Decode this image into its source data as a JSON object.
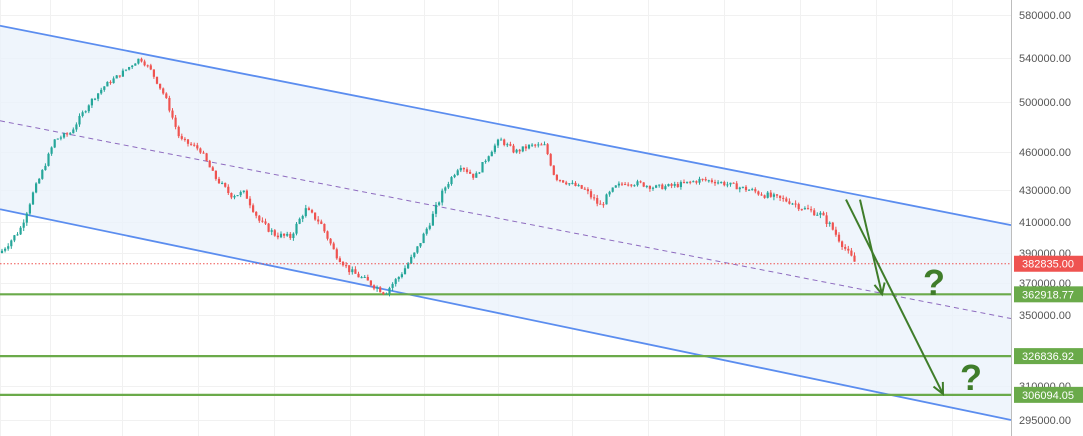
{
  "chart_data": {
    "type": "candlestick",
    "ylim": [
      290000,
      590000
    ],
    "y_ticks": [
      {
        "value": 580000,
        "label": "580000.00"
      },
      {
        "value": 540000,
        "label": "540000.00"
      },
      {
        "value": 500000,
        "label": "500000.00"
      },
      {
        "value": 460000,
        "label": "460000.00"
      },
      {
        "value": 430000,
        "label": "430000.00"
      },
      {
        "value": 410000,
        "label": "410000.00"
      },
      {
        "value": 390000,
        "label": "390000.00"
      },
      {
        "value": 370000,
        "label": "370000.00"
      },
      {
        "value": 350000,
        "label": "350000.00"
      },
      {
        "value": 310000,
        "label": "310000.00"
      },
      {
        "value": 295000,
        "label": "295000.00"
      }
    ],
    "current_price": {
      "value": 382835,
      "label": "382835.00",
      "color": "#ef5350"
    },
    "horizontal_levels": [
      {
        "value": 362918.77,
        "label": "362918.77",
        "color": "#6aaa4a"
      },
      {
        "value": 326836.92,
        "label": "326836.92",
        "color": "#6aaa4a"
      },
      {
        "value": 306094.05,
        "label": "306094.05",
        "color": "#6aaa4a"
      }
    ],
    "price_path": [
      [
        0,
        390000
      ],
      [
        20,
        405000
      ],
      [
        40,
        440000
      ],
      [
        55,
        470000
      ],
      [
        70,
        475000
      ],
      [
        90,
        500000
      ],
      [
        105,
        515000
      ],
      [
        120,
        525000
      ],
      [
        140,
        540000
      ],
      [
        150,
        530000
      ],
      [
        165,
        505000
      ],
      [
        180,
        470000
      ],
      [
        200,
        462000
      ],
      [
        215,
        440000
      ],
      [
        230,
        427000
      ],
      [
        245,
        428000
      ],
      [
        260,
        410000
      ],
      [
        275,
        402000
      ],
      [
        290,
        400000
      ],
      [
        305,
        418000
      ],
      [
        320,
        410000
      ],
      [
        335,
        390000
      ],
      [
        350,
        378000
      ],
      [
        365,
        372000
      ],
      [
        385,
        364000
      ],
      [
        400,
        375000
      ],
      [
        415,
        390000
      ],
      [
        430,
        410000
      ],
      [
        445,
        432000
      ],
      [
        460,
        450000
      ],
      [
        475,
        440000
      ],
      [
        490,
        460000
      ],
      [
        500,
        470000
      ],
      [
        515,
        460000
      ],
      [
        530,
        465000
      ],
      [
        545,
        465000
      ],
      [
        555,
        440000
      ],
      [
        570,
        435000
      ],
      [
        585,
        430000
      ],
      [
        600,
        420000
      ],
      [
        615,
        432000
      ],
      [
        625,
        436000
      ],
      [
        640,
        435000
      ],
      [
        655,
        432000
      ],
      [
        670,
        433000
      ],
      [
        685,
        435000
      ],
      [
        700,
        438000
      ],
      [
        715,
        437000
      ],
      [
        730,
        434000
      ],
      [
        745,
        431000
      ],
      [
        760,
        428000
      ],
      [
        775,
        425000
      ],
      [
        790,
        423000
      ],
      [
        805,
        418000
      ],
      [
        820,
        415000
      ],
      [
        830,
        408000
      ],
      [
        840,
        398000
      ],
      [
        848,
        390000
      ],
      [
        856,
        382835
      ]
    ],
    "channel": {
      "color": "#5b8def",
      "fill": "#e9f1fb",
      "upper": [
        [
          0,
          570000
        ],
        [
          1011,
          408000
        ]
      ],
      "lower": [
        [
          0,
          418000
        ],
        [
          1011,
          295000
        ]
      ],
      "mid": [
        [
          0,
          485000
        ],
        [
          1011,
          348000
        ]
      ]
    },
    "arrows": [
      {
        "from": [
          860,
          424000
        ],
        "to": [
          882,
          363000
        ],
        "color": "#3f7d2a"
      },
      {
        "from": [
          846,
          424000
        ],
        "to": [
          943,
          306500
        ],
        "color": "#3f7d2a"
      }
    ],
    "annotations": [
      {
        "text": "?",
        "x": 934,
        "value": 370000,
        "color": "#3f7d2a"
      },
      {
        "text": "?",
        "x": 971,
        "value": 314500,
        "color": "#3f7d2a"
      }
    ]
  }
}
